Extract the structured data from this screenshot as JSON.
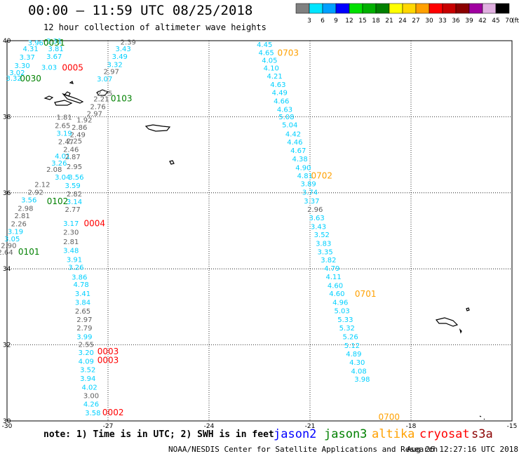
{
  "header": {
    "title": "00:00 – 11:59 UTC 08/25/2018",
    "subtitle": "12 hour collection of altimeter wave heights"
  },
  "colorbar": {
    "unit": "(ft)",
    "bins": [
      {
        "label": "3",
        "color": "#808080"
      },
      {
        "label": "6",
        "color": "#00e5ff"
      },
      {
        "label": "9",
        "color": "#00a0ff"
      },
      {
        "label": "12",
        "color": "#0000ff"
      },
      {
        "label": "15",
        "color": "#00e000"
      },
      {
        "label": "18",
        "color": "#00b000"
      },
      {
        "label": "21",
        "color": "#008000"
      },
      {
        "label": "24",
        "color": "#ffff00"
      },
      {
        "label": "27",
        "color": "#ffd700"
      },
      {
        "label": "30",
        "color": "#ffa000"
      },
      {
        "label": "33",
        "color": "#ff0000"
      },
      {
        "label": "36",
        "color": "#c80000"
      },
      {
        "label": "39",
        "color": "#8b0000"
      },
      {
        "label": "42",
        "color": "#a000a0"
      },
      {
        "label": "45",
        "color": "#e0b0e0"
      },
      {
        "label": "70",
        "color": "#000000"
      }
    ]
  },
  "colors": {
    "jason2": "#0000ff",
    "jason3": "#008000",
    "altika": "#ffa000",
    "cryosat": "#ff0000",
    "s3a": "#8b0000",
    "gray_obs": "#606060",
    "cyan_obs": "#00d0ff"
  },
  "map": {
    "lon_ticks": [
      "-30",
      "-27",
      "-24",
      "-21",
      "-18",
      "-15"
    ],
    "lat_ticks": [
      "40",
      "38",
      "36",
      "34",
      "32",
      "30"
    ],
    "lon_range": [
      -30,
      -15
    ],
    "lat_range": [
      30,
      40
    ],
    "observations": [
      [
        "3.96",
        -29.15,
        39.88,
        "c"
      ],
      [
        "3.31",
        -28.6,
        39.93,
        "c"
      ],
      [
        "2.39",
        -26.4,
        39.9,
        "g"
      ],
      [
        "4.31",
        -29.3,
        39.72,
        "c"
      ],
      [
        "3.81",
        -28.55,
        39.72,
        "c"
      ],
      [
        "3.43",
        -26.55,
        39.72,
        "c"
      ],
      [
        "3.37",
        -29.4,
        39.5,
        "c"
      ],
      [
        "3.67",
        -28.6,
        39.52,
        "c"
      ],
      [
        "3.49",
        -26.65,
        39.52,
        "c"
      ],
      [
        "3.30",
        -29.55,
        39.28,
        "c"
      ],
      [
        "3.32",
        -26.8,
        39.31,
        "c"
      ],
      [
        "3.02",
        -29.7,
        39.1,
        "c"
      ],
      [
        "3.03",
        -28.75,
        39.23,
        "c"
      ],
      [
        "2.97",
        -26.9,
        39.12,
        "g"
      ],
      [
        "3.32",
        -29.8,
        38.95,
        "c"
      ],
      [
        "3.07",
        -27.1,
        38.93,
        "c"
      ],
      [
        "2.75",
        -27.1,
        38.55,
        "g"
      ],
      [
        "2.21",
        -27.2,
        38.4,
        "g"
      ],
      [
        "2.76",
        -27.3,
        38.2,
        "g"
      ],
      [
        "2.97",
        -27.4,
        38.02,
        "g"
      ],
      [
        "1.81",
        -28.3,
        37.92,
        "g"
      ],
      [
        "1.92",
        -27.7,
        37.85,
        "g"
      ],
      [
        "2.65",
        -28.35,
        37.7,
        "g"
      ],
      [
        "2.86",
        -27.85,
        37.66,
        "g"
      ],
      [
        "3.19",
        -28.3,
        37.5,
        "c"
      ],
      [
        "2.49",
        -27.9,
        37.46,
        "g"
      ],
      [
        "2.47",
        -28.25,
        37.28,
        "g"
      ],
      [
        "2.25",
        -28.0,
        37.3,
        "g"
      ],
      [
        "2.46",
        -28.1,
        37.08,
        "g"
      ],
      [
        "4.01",
        -28.35,
        36.9,
        "c"
      ],
      [
        "2.87",
        -28.05,
        36.88,
        "g"
      ],
      [
        "3.26",
        -28.45,
        36.72,
        "c"
      ],
      [
        "2.95",
        -28.0,
        36.62,
        "g"
      ],
      [
        "2.08",
        -28.6,
        36.55,
        "g"
      ],
      [
        "3.04",
        -28.35,
        36.35,
        "c"
      ],
      [
        "3.56",
        -27.95,
        36.35,
        "c"
      ],
      [
        "2.12",
        -28.95,
        36.15,
        "g"
      ],
      [
        "3.59",
        -28.05,
        36.13,
        "c"
      ],
      [
        "2.92",
        -29.15,
        35.95,
        "g"
      ],
      [
        "2.82",
        -28.0,
        35.9,
        "g"
      ],
      [
        "3.56",
        -29.35,
        35.75,
        "c"
      ],
      [
        "3.14",
        -28.0,
        35.7,
        "c"
      ],
      [
        "2.98",
        -29.45,
        35.53,
        "g"
      ],
      [
        "2.77",
        -28.05,
        35.5,
        "g"
      ],
      [
        "2.81",
        -29.55,
        35.33,
        "g"
      ],
      [
        "2.26",
        -29.65,
        35.12,
        "g"
      ],
      [
        "3.17",
        -28.1,
        35.13,
        "c"
      ],
      [
        "3.19",
        -29.75,
        34.92,
        "c"
      ],
      [
        "2.30",
        -28.1,
        34.9,
        "g"
      ],
      [
        "3.05",
        -29.85,
        34.72,
        "c"
      ],
      [
        "2.81",
        -28.1,
        34.65,
        "g"
      ],
      [
        "2.90",
        -29.95,
        34.55,
        "g"
      ],
      [
        "2.64",
        -30.05,
        34.37,
        "g"
      ],
      [
        "3.48",
        -28.1,
        34.42,
        "c"
      ],
      [
        "3.91",
        -28.0,
        34.18,
        "c"
      ],
      [
        "3.26",
        -27.95,
        33.98,
        "c"
      ],
      [
        "3.86",
        -27.85,
        33.72,
        "c"
      ],
      [
        "4.78",
        -27.8,
        33.52,
        "c"
      ],
      [
        "3.41",
        -27.75,
        33.28,
        "c"
      ],
      [
        "3.84",
        -27.75,
        33.05,
        "c"
      ],
      [
        "2.65",
        -27.75,
        32.82,
        "g"
      ],
      [
        "2.97",
        -27.7,
        32.6,
        "g"
      ],
      [
        "2.79",
        -27.7,
        32.38,
        "g"
      ],
      [
        "3.99",
        -27.7,
        32.15,
        "c"
      ],
      [
        "2.55",
        -27.65,
        31.95,
        "g"
      ],
      [
        "3.20",
        -27.65,
        31.73,
        "c"
      ],
      [
        "4.09",
        -27.65,
        31.5,
        "c"
      ],
      [
        "3.52",
        -27.6,
        31.28,
        "c"
      ],
      [
        "3.94",
        -27.6,
        31.05,
        "c"
      ],
      [
        "4.02",
        -27.55,
        30.82,
        "c"
      ],
      [
        "3.00",
        -27.5,
        30.6,
        "g"
      ],
      [
        "4.26",
        -27.5,
        30.38,
        "c"
      ],
      [
        "3.58",
        -27.45,
        30.15,
        "c"
      ],
      [
        "4.45",
        -22.35,
        39.83,
        "c"
      ],
      [
        "4.65",
        -22.3,
        39.62,
        "c"
      ],
      [
        "4.05",
        -22.2,
        39.42,
        "c"
      ],
      [
        "4.10",
        -22.15,
        39.22,
        "c"
      ],
      [
        "4.21",
        -22.05,
        39.0,
        "c"
      ],
      [
        "4.63",
        -21.95,
        38.78,
        "c"
      ],
      [
        "4.49",
        -21.9,
        38.57,
        "c"
      ],
      [
        "4.66",
        -21.85,
        38.35,
        "c"
      ],
      [
        "4.63",
        -21.75,
        38.13,
        "c"
      ],
      [
        "5.08",
        -21.7,
        37.93,
        "c"
      ],
      [
        "5.04",
        -21.6,
        37.72,
        "c"
      ],
      [
        "4.42",
        -21.5,
        37.48,
        "c"
      ],
      [
        "4.46",
        -21.45,
        37.27,
        "c"
      ],
      [
        "4.67",
        -21.35,
        37.05,
        "c"
      ],
      [
        "4.38",
        -21.3,
        36.83,
        "c"
      ],
      [
        "4.90",
        -21.2,
        36.6,
        "c"
      ],
      [
        "4.81",
        -21.15,
        36.38,
        "c"
      ],
      [
        "3.89",
        -21.05,
        36.17,
        "c"
      ],
      [
        "3.74",
        -21.0,
        35.95,
        "c"
      ],
      [
        "3.37",
        -20.95,
        35.72,
        "c"
      ],
      [
        "2.96",
        -20.85,
        35.5,
        "g"
      ],
      [
        "3.63",
        -20.8,
        35.28,
        "c"
      ],
      [
        "3.43",
        -20.75,
        35.05,
        "c"
      ],
      [
        "3.52",
        -20.65,
        34.83,
        "c"
      ],
      [
        "3.83",
        -20.6,
        34.6,
        "c"
      ],
      [
        "3.35",
        -20.55,
        34.38,
        "c"
      ],
      [
        "3.82",
        -20.45,
        34.17,
        "c"
      ],
      [
        "4.79",
        -20.35,
        33.95,
        "c"
      ],
      [
        "4.11",
        -20.3,
        33.73,
        "c"
      ],
      [
        "4.60",
        -20.25,
        33.5,
        "c"
      ],
      [
        "4.60",
        -20.2,
        33.28,
        "c"
      ],
      [
        "4.96",
        -20.1,
        33.05,
        "c"
      ],
      [
        "5.03",
        -20.05,
        32.83,
        "c"
      ],
      [
        "5.33",
        -19.95,
        32.6,
        "c"
      ],
      [
        "5.32",
        -19.9,
        32.38,
        "c"
      ],
      [
        "5.26",
        -19.8,
        32.15,
        "c"
      ],
      [
        "5.12",
        -19.75,
        31.92,
        "c"
      ],
      [
        "4.89",
        -19.7,
        31.7,
        "c"
      ],
      [
        "4.30",
        -19.6,
        31.48,
        "c"
      ],
      [
        "4.08",
        -19.55,
        31.25,
        "c"
      ],
      [
        "3.98",
        -19.45,
        31.03,
        "c"
      ]
    ],
    "pass_labels": [
      {
        "text": "0031",
        "lon": -28.6,
        "lat": 39.87,
        "sat": "jason3"
      },
      {
        "text": "0005",
        "lon": -28.05,
        "lat": 39.22,
        "sat": "cryosat"
      },
      {
        "text": "0030",
        "lon": -29.3,
        "lat": 38.93,
        "sat": "jason3"
      },
      {
        "text": "0103",
        "lon": -26.6,
        "lat": 38.4,
        "sat": "jason3"
      },
      {
        "text": "0102",
        "lon": -28.5,
        "lat": 35.7,
        "sat": "jason3"
      },
      {
        "text": "0004",
        "lon": -27.4,
        "lat": 35.12,
        "sat": "cryosat"
      },
      {
        "text": "0101",
        "lon": -29.35,
        "lat": 34.37,
        "sat": "jason3"
      },
      {
        "text": "0003",
        "lon": -27.0,
        "lat": 31.75,
        "sat": "cryosat"
      },
      {
        "text": "0003",
        "lon": -27.0,
        "lat": 31.52,
        "sat": "cryosat"
      },
      {
        "text": "0002",
        "lon": -26.85,
        "lat": 30.15,
        "sat": "cryosat"
      },
      {
        "text": "0703",
        "lon": -21.65,
        "lat": 39.6,
        "sat": "altika"
      },
      {
        "text": "0702",
        "lon": -20.65,
        "lat": 36.37,
        "sat": "altika"
      },
      {
        "text": "0701",
        "lon": -19.35,
        "lat": 33.27,
        "sat": "altika"
      },
      {
        "text": "0700",
        "lon": -18.65,
        "lat": 30.03,
        "sat": "altika"
      }
    ]
  },
  "footer": {
    "note": "note: 1) Time is in UTC; 2) SWH is in feet",
    "legend": [
      {
        "name": "jason2",
        "key": "jason2"
      },
      {
        "name": "jason3",
        "key": "jason3"
      },
      {
        "name": "altika",
        "key": "altika"
      },
      {
        "name": "cryosat",
        "key": "cryosat"
      },
      {
        "name": "s3a",
        "key": "s3a"
      }
    ],
    "credit": "NOAA/NESDIS Center for Satellite Applications and Research",
    "timestamp": "Aug 26 12:27:16 UTC 2018"
  }
}
